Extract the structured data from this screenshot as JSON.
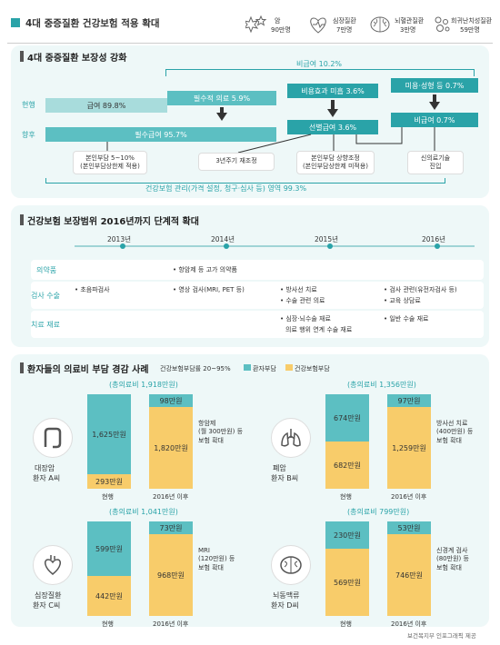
{
  "header": {
    "title": "4대 중증질환 건강보험 적용 확대",
    "diseases": [
      {
        "name": "암",
        "count": "90만명",
        "icon": "cancer-icon"
      },
      {
        "name": "심장질환",
        "count": "7만명",
        "icon": "heart-icon"
      },
      {
        "name": "뇌혈관질환",
        "count": "3만명",
        "icon": "brain-icon"
      },
      {
        "name": "희귀난치성질환",
        "count": "59만명",
        "icon": "rare-disease-icon"
      }
    ]
  },
  "section1": {
    "title": "4대 중증질환 보장성 강화",
    "row_current": "현행",
    "row_future": "향후",
    "nonbenefit": "비급여 10.2%",
    "bar_benefit": "급여 89.8%",
    "bar_essential": "필수적 의료 5.9%",
    "bar_costeff": "비용효과 미흡 3.6%",
    "bar_beauty": "미용·성형 등 0.7%",
    "bar_must": "필수급여 95.7%",
    "bar_select": "선별급여 3.6%",
    "bar_nonbenefit2": "비급여 0.7%",
    "box1_line1": "본인부담 5~10%",
    "box1_line2": "(본인부담상한제 적용)",
    "box2": "3년주기 재조정",
    "box3_line1": "본인부담 상향조정",
    "box3_line2": "(본인부담상한제 미적용)",
    "box4_line1": "신의료기술",
    "box4_line2": "진입",
    "footer": "건강보험 관리(가격 설정, 청구·심사 등) 영역 99.3%"
  },
  "section2": {
    "title": "건강보험 보장범위 2016년까지 단계적 확대",
    "years": [
      "2013년",
      "2014년",
      "2015년",
      "2016년"
    ],
    "rows": [
      {
        "category": "의약품",
        "items": [
          "• 항암제 등 고가 의약품"
        ]
      },
      {
        "category": "검사 수술",
        "items": [
          "• 초음파검사",
          "• 영상 검사(MRI, PET 등)",
          "• 방사선 치료",
          "• 수술 관련 의료",
          "• 검사 관련(유전자검사 등)",
          "• 교육 상담료"
        ]
      },
      {
        "category": "치료 재료",
        "items": [
          "• 심장·뇌수술 재료",
          "의료 행위 연계 수술 재료",
          "• 일반 수술 재료"
        ]
      }
    ]
  },
  "section3": {
    "title": "환자들의 의료비 부담 경감 사례",
    "subtitle": "건강보험부담률 20~95%",
    "legend": [
      {
        "label": "환자부담",
        "color": "#5cbfc2"
      },
      {
        "label": "건강보험부담",
        "color": "#f8cc6a"
      }
    ],
    "cases": [
      {
        "total": "(총의료비 1,918만원)",
        "patient_line1": "대장암",
        "patient_line2": "환자 A씨",
        "current_top": "1,625만원",
        "current_bottom": "293만원",
        "after_top": "98만원",
        "after_bottom": "1,820만원",
        "note_line1": "항암제",
        "note_line2": "(월 300만원) 등",
        "note_line3": "보험 확대",
        "label_current": "현행",
        "label_after": "2016년 이후",
        "icon": "colon-icon",
        "current_patient_share": 0.847,
        "after_patient_share": 0.051
      },
      {
        "total": "(총의료비 1,356만원)",
        "patient_line1": "폐암",
        "patient_line2": "환자 B씨",
        "current_top": "674만원",
        "current_bottom": "682만원",
        "after_top": "97만원",
        "after_bottom": "1,259만원",
        "note_line1": "방사선 치료",
        "note_line2": "(400만원) 등",
        "note_line3": "보험 확대",
        "label_current": "현행",
        "label_after": "2016년 이후",
        "icon": "lungs-icon",
        "current_patient_share": 0.497,
        "after_patient_share": 0.072
      },
      {
        "total": "(총의료비 1,041만원)",
        "patient_line1": "심장질환",
        "patient_line2": "환자 C씨",
        "current_top": "599만원",
        "current_bottom": "442만원",
        "after_top": "73만원",
        "after_bottom": "968만원",
        "note_line1": "MRI",
        "note_line2": "(120만원) 등",
        "note_line3": "보험 확대",
        "label_current": "현행",
        "label_after": "2016년 이후",
        "icon": "heart-organ-icon",
        "current_patient_share": 0.575,
        "after_patient_share": 0.07
      },
      {
        "total": "(총의료비 799만원)",
        "patient_line1": "뇌동맥류",
        "patient_line2": "환자 D씨",
        "current_top": "230만원",
        "current_bottom": "569만원",
        "after_top": "53만원",
        "after_bottom": "746만원",
        "note_line1": "신경계 검사",
        "note_line2": "(80만원) 등",
        "note_line3": "보험 확대",
        "label_current": "현행",
        "label_after": "2016년 이후",
        "icon": "brain-organ-icon",
        "current_patient_share": 0.288,
        "after_patient_share": 0.066
      }
    ]
  },
  "credit": "보건복지부 인포그래픽 제공"
}
